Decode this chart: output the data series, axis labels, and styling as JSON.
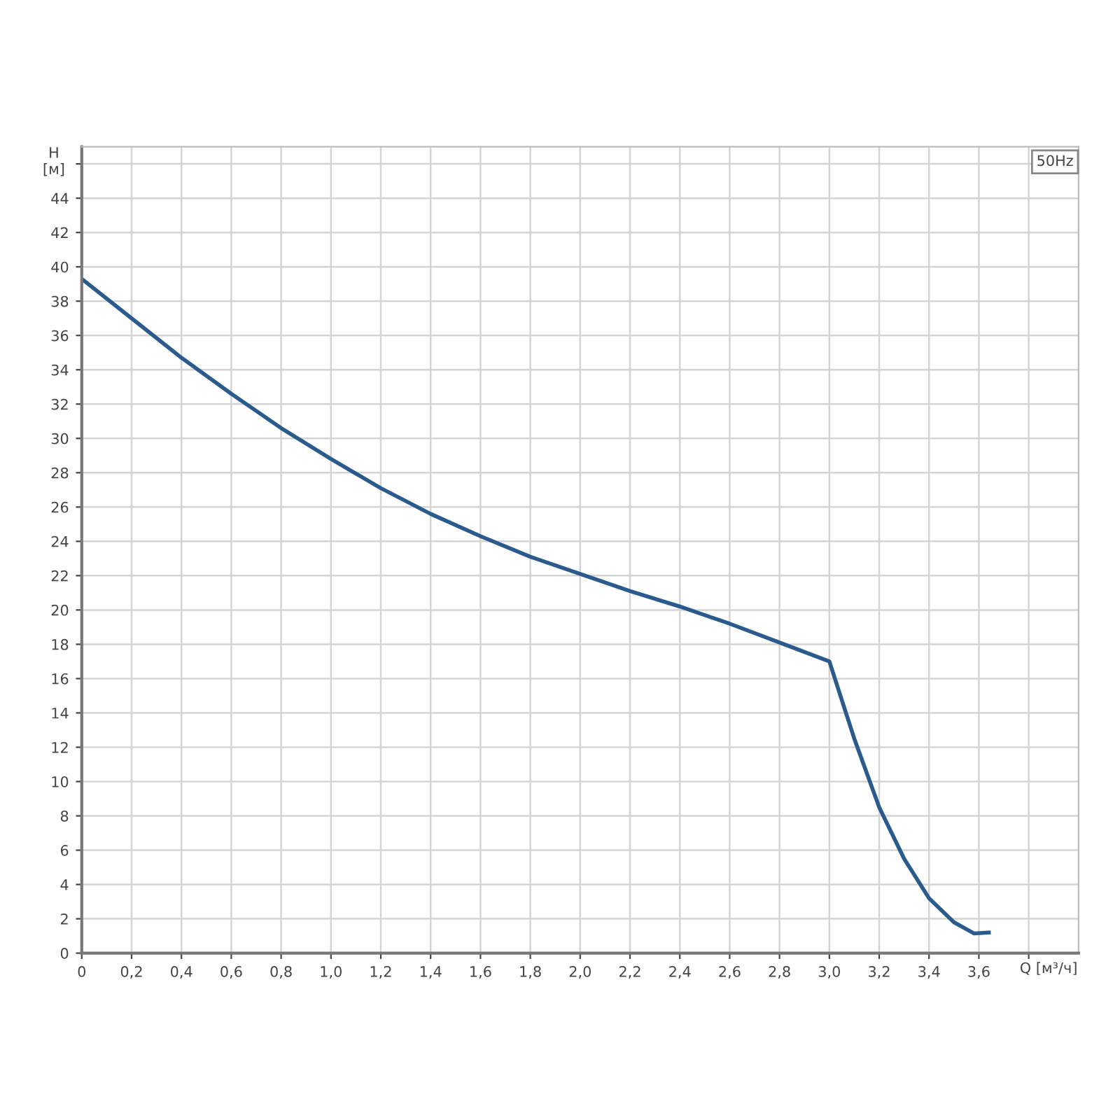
{
  "chart_data": {
    "type": "line",
    "xlabel": "Q [м³/ч]",
    "ylabel": "H\n[м]",
    "annotations": [
      "50Hz"
    ],
    "x": [
      0,
      0.2,
      0.4,
      0.6,
      0.8,
      1.0,
      1.2,
      1.4,
      1.6,
      1.8,
      2.0,
      2.2,
      2.4,
      2.6,
      2.8,
      3.0,
      3.1,
      3.2,
      3.3,
      3.4,
      3.5,
      3.58,
      3.64
    ],
    "series": [
      {
        "color": "#2b5b8c",
        "values": [
          39.3,
          37.0,
          34.7,
          32.6,
          30.6,
          28.8,
          27.1,
          25.6,
          24.3,
          23.1,
          22.1,
          21.1,
          20.2,
          19.2,
          18.1,
          17.0,
          12.5,
          8.5,
          5.5,
          3.2,
          1.8,
          1.15,
          1.2
        ]
      }
    ],
    "xlim": [
      0,
      4.0
    ],
    "ylim": [
      0,
      47
    ],
    "xticks": [
      0,
      {
        "value": 0.2,
        "label": "0,2"
      },
      {
        "value": 0.4,
        "label": "0,4"
      },
      {
        "value": 0.6,
        "label": "0,6"
      },
      {
        "value": 0.8,
        "label": "0,8"
      },
      {
        "value": 1.0,
        "label": "1,0"
      },
      {
        "value": 1.2,
        "label": "1,2"
      },
      {
        "value": 1.4,
        "label": "1,4"
      },
      {
        "value": 1.6,
        "label": "1,6"
      },
      {
        "value": 1.8,
        "label": "1,8"
      },
      {
        "value": 2.0,
        "label": "2,0"
      },
      {
        "value": 2.2,
        "label": "2,2"
      },
      {
        "value": 2.4,
        "label": "2,4"
      },
      {
        "value": 2.6,
        "label": "2,6"
      },
      {
        "value": 2.8,
        "label": "2,8"
      },
      {
        "value": 3.0,
        "label": "3,0"
      },
      {
        "value": 3.2,
        "label": "3,2"
      },
      {
        "value": 3.4,
        "label": "3,4"
      },
      {
        "value": 3.6,
        "label": "3,6"
      },
      {
        "value": 3.8,
        "label": null
      }
    ],
    "yticks": [
      0,
      2,
      4,
      6,
      8,
      10,
      12,
      14,
      16,
      18,
      20,
      22,
      24,
      26,
      28,
      30,
      32,
      34,
      36,
      38,
      40,
      42,
      44,
      {
        "value": 46,
        "label": null
      }
    ],
    "grid": true,
    "marker": "none",
    "line_style": "solid"
  }
}
